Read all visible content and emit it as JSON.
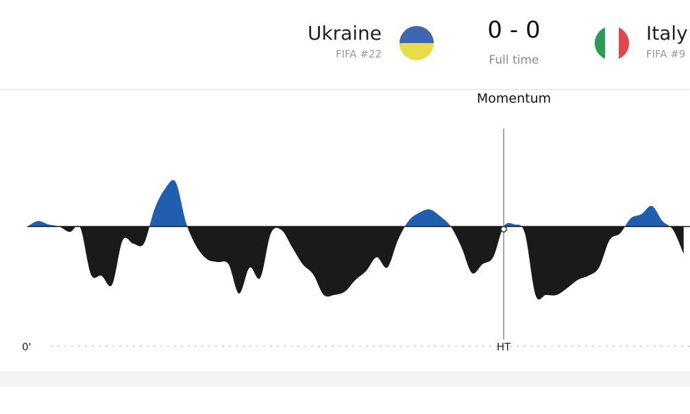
{
  "header": {
    "home": {
      "name": "Ukraine",
      "rank": "FIFA #22"
    },
    "away": {
      "name": "Italy",
      "rank": "FIFA #9"
    },
    "score": "0 - 0",
    "status": "Full time"
  },
  "chart_data": {
    "type": "area",
    "title": "Momentum",
    "x": [
      0,
      1,
      2,
      3,
      4,
      5,
      6,
      7,
      8,
      9,
      10,
      11,
      12,
      13,
      14,
      15,
      16,
      17,
      18,
      19,
      20,
      21,
      22,
      23,
      24,
      25,
      26,
      27,
      28,
      29,
      30,
      31,
      32,
      33,
      34,
      35,
      36,
      37,
      38,
      39,
      40,
      41,
      42,
      43,
      44,
      45,
      46,
      47,
      48,
      49,
      50,
      51,
      52,
      53,
      54,
      55,
      56,
      57,
      58,
      59,
      60,
      61,
      62
    ],
    "values": [
      0,
      8,
      3,
      0,
      -8,
      -2,
      -70,
      -72,
      -85,
      -20,
      -25,
      -25,
      25,
      55,
      65,
      5,
      -30,
      -48,
      -52,
      -55,
      -98,
      -60,
      -75,
      -10,
      -5,
      -30,
      -55,
      -70,
      -100,
      -100,
      -95,
      -78,
      -65,
      -45,
      -60,
      -20,
      8,
      20,
      25,
      15,
      0,
      -30,
      -68,
      -55,
      -45,
      0,
      3,
      -10,
      -100,
      -100,
      -100,
      -90,
      -78,
      -72,
      -60,
      -20,
      -10,
      12,
      18,
      30,
      8,
      -5,
      -40
    ],
    "positive_color": "#1f5fae",
    "negative_color": "#1a1a1a",
    "xlim": [
      0,
      62.6
    ],
    "ylim": [
      -100,
      100
    ],
    "xticks": [
      {
        "value": 0,
        "label": "0'"
      },
      {
        "value": 45,
        "label": "HT"
      }
    ]
  }
}
